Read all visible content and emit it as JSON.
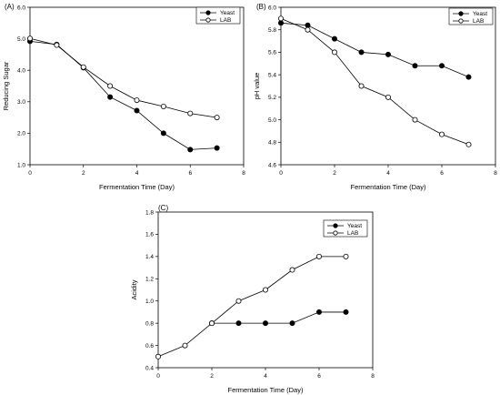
{
  "chart_data": [
    {
      "panel_label": "(A)",
      "type": "line",
      "xlabel": "Fermentation Time (Day)",
      "ylabel": "Reducing Sugar",
      "xlim": [
        0,
        8
      ],
      "ylim": [
        1.0,
        6.0
      ],
      "xticks": [
        "0",
        "2",
        "4",
        "6",
        "8"
      ],
      "yticks": [
        "1.0",
        "2.0",
        "3.0",
        "4.0",
        "5.0",
        "6.0"
      ],
      "x": [
        0,
        1,
        2,
        3,
        4,
        5,
        6,
        7
      ],
      "legend": "top-right",
      "grid": false,
      "series": [
        {
          "name": "Yeast",
          "marker": "filled",
          "values": [
            4.92,
            4.82,
            4.08,
            3.15,
            2.72,
            2.0,
            1.48,
            1.53
          ]
        },
        {
          "name": "LAB",
          "marker": "open",
          "values": [
            5.01,
            4.8,
            4.1,
            3.5,
            3.05,
            2.85,
            2.63,
            2.5
          ]
        }
      ]
    },
    {
      "panel_label": "(B)",
      "type": "line",
      "xlabel": "Fermentation Time (Day)",
      "ylabel": "pH value",
      "xlim": [
        0,
        8
      ],
      "ylim": [
        4.6,
        6.0
      ],
      "xticks": [
        "0",
        "2",
        "4",
        "6",
        "8"
      ],
      "yticks": [
        "4.6",
        "4.8",
        "5.0",
        "5.2",
        "5.4",
        "5.6",
        "5.8",
        "6.0"
      ],
      "x": [
        0,
        1,
        2,
        3,
        4,
        5,
        6,
        7
      ],
      "legend": "top-right",
      "grid": false,
      "series": [
        {
          "name": "Yeast",
          "marker": "filled",
          "values": [
            5.86,
            5.84,
            5.72,
            5.6,
            5.58,
            5.48,
            5.48,
            5.38
          ]
        },
        {
          "name": "LAB",
          "marker": "open",
          "values": [
            5.9,
            5.8,
            5.6,
            5.3,
            5.2,
            5.0,
            4.87,
            4.78
          ]
        }
      ]
    },
    {
      "panel_label": "(C)",
      "type": "line",
      "xlabel": "Fermentation Time (Day)",
      "ylabel": "Acidity",
      "xlim": [
        0,
        8
      ],
      "ylim": [
        0.4,
        1.8
      ],
      "xticks": [
        "0",
        "2",
        "4",
        "6",
        "8"
      ],
      "yticks": [
        "0.4",
        "0.6",
        "0.8",
        "1.0",
        "1.2",
        "1.4",
        "1.6",
        "1.8"
      ],
      "legend": "top-right",
      "grid": false,
      "series": [
        {
          "name": "Yeast",
          "marker": "filled",
          "x": [
            2,
            3,
            4,
            5,
            6,
            7
          ],
          "values": [
            0.8,
            0.8,
            0.8,
            0.8,
            0.9,
            0.9
          ]
        },
        {
          "name": "LAB",
          "marker": "open",
          "x": [
            0,
            1,
            2,
            3,
            4,
            5,
            6,
            7
          ],
          "values": [
            0.5,
            0.6,
            0.8,
            1.0,
            1.1,
            1.28,
            1.4,
            1.4
          ]
        }
      ]
    }
  ]
}
